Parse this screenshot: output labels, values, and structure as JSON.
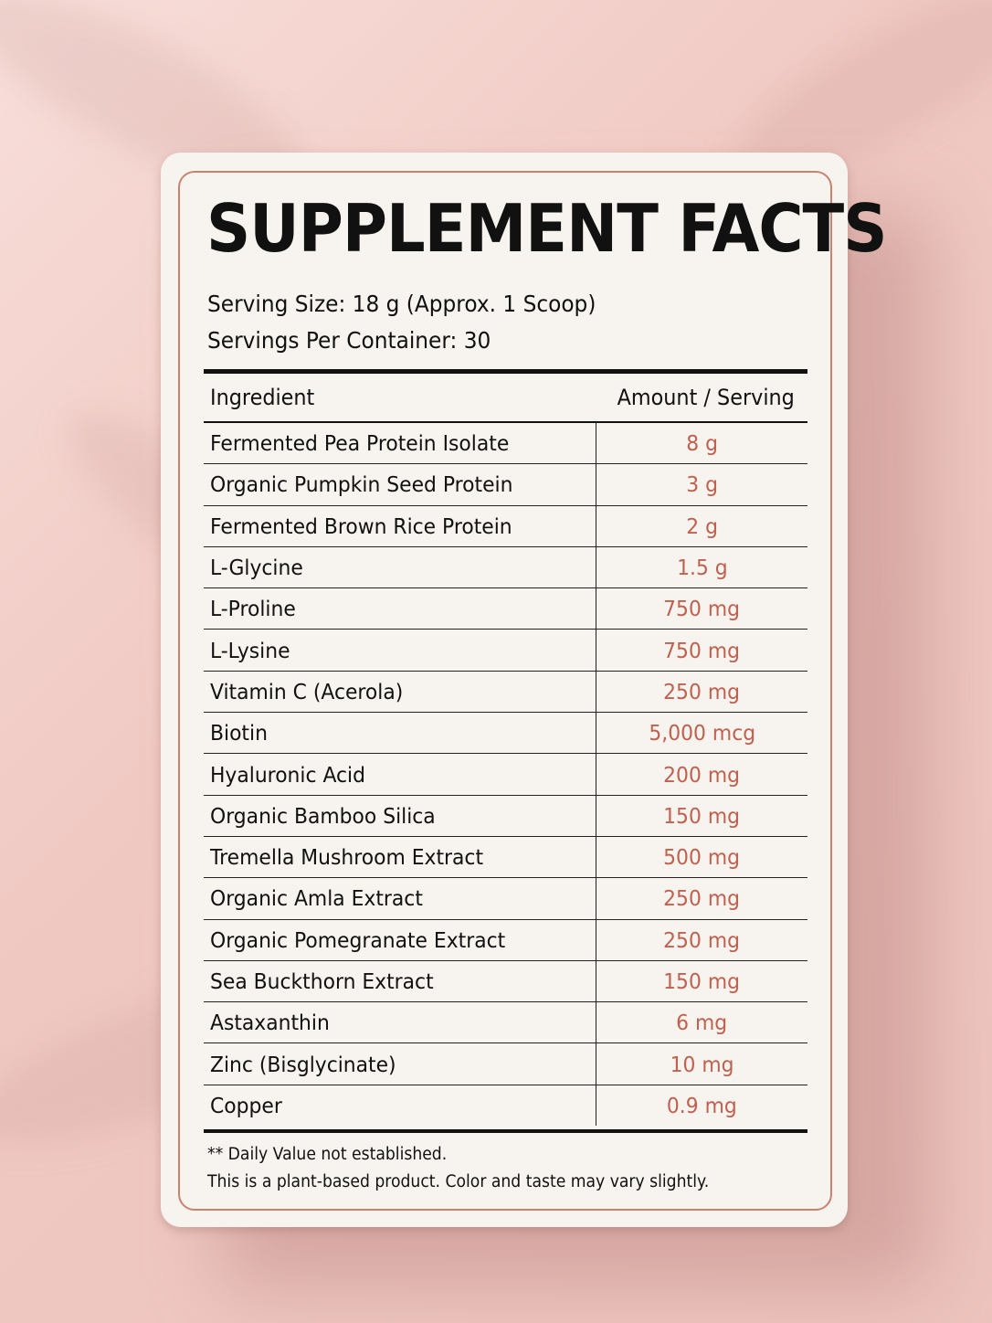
{
  "colors": {
    "background": "#f0c9c3",
    "card": "#f7f3ee",
    "border_accent": "#c9826f",
    "amount_text": "#c0614f",
    "text": "#111111"
  },
  "label": {
    "title": "SUPPLEMENT FACTS",
    "serving_size": "Serving Size: 18 g (Approx. 1 Scoop)",
    "servings_per_container": "Servings Per Container: 30"
  },
  "table": {
    "header_ingredient": "Ingredient",
    "header_amount": "Amount / Serving",
    "rows": [
      {
        "ingredient": "Fermented Pea Protein Isolate",
        "amount": "8 g"
      },
      {
        "ingredient": "Organic Pumpkin Seed Protein",
        "amount": "3 g"
      },
      {
        "ingredient": "Fermented Brown Rice Protein",
        "amount": "2 g"
      },
      {
        "ingredient": "L-Glycine",
        "amount": "1.5 g"
      },
      {
        "ingredient": "L-Proline",
        "amount": "750 mg"
      },
      {
        "ingredient": "L-Lysine",
        "amount": "750 mg"
      },
      {
        "ingredient": "Vitamin C (Acerola)",
        "amount": "250 mg"
      },
      {
        "ingredient": "Biotin",
        "amount": "5,000 mcg"
      },
      {
        "ingredient": "Hyaluronic Acid",
        "amount": "200 mg"
      },
      {
        "ingredient": "Organic Bamboo Silica",
        "amount": "150 mg"
      },
      {
        "ingredient": "Tremella Mushroom Extract",
        "amount": "500 mg"
      },
      {
        "ingredient": "Organic Amla Extract",
        "amount": "250 mg"
      },
      {
        "ingredient": "Organic Pomegranate Extract",
        "amount": "250 mg"
      },
      {
        "ingredient": "Sea Buckthorn Extract",
        "amount": "150 mg"
      },
      {
        "ingredient": "Astaxanthin",
        "amount": "6 mg"
      },
      {
        "ingredient": "Zinc (Bisglycinate)",
        "amount": "10 mg"
      },
      {
        "ingredient": "Copper",
        "amount": "0.9 mg"
      }
    ]
  },
  "footer": {
    "note_1": "** Daily Value not established.",
    "note_2": "This is a plant-based product. Color and taste may vary slightly."
  }
}
